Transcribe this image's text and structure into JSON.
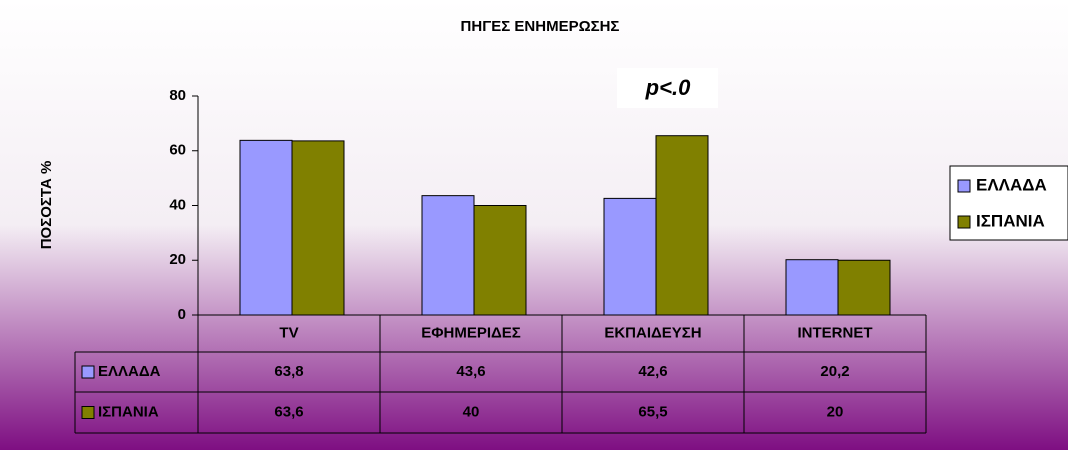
{
  "chart_data": {
    "type": "bar",
    "title": "ΠΗΓΕΣ ΕΝΗΜΕΡΩΣΗΣ",
    "ylabel": "ΠΟΣΟΣΤΑ %",
    "annotation": "p<.0",
    "categories": [
      "TV",
      "ΕΦΗΜΕΡΙΔΕΣ",
      "ΕΚΠΑΙΔΕΥΣΗ",
      "INTERNET"
    ],
    "series": [
      {
        "name": "ΕΛΛΑΔΑ",
        "color": "#9999ff",
        "values": [
          63.8,
          43.6,
          42.6,
          20.2
        ],
        "value_labels": [
          "63,8",
          "43,6",
          "42,6",
          "20,2"
        ]
      },
      {
        "name": "ΙΣΠΑΝΙΑ",
        "color": "#808000",
        "values": [
          63.6,
          40,
          65.5,
          20
        ],
        "value_labels": [
          "63,6",
          "40",
          "65,5",
          "20"
        ]
      }
    ],
    "ylim": [
      0,
      80
    ],
    "yticks": [
      0,
      20,
      40,
      60,
      80
    ],
    "grid": false,
    "legend": "right",
    "data_table": true
  }
}
